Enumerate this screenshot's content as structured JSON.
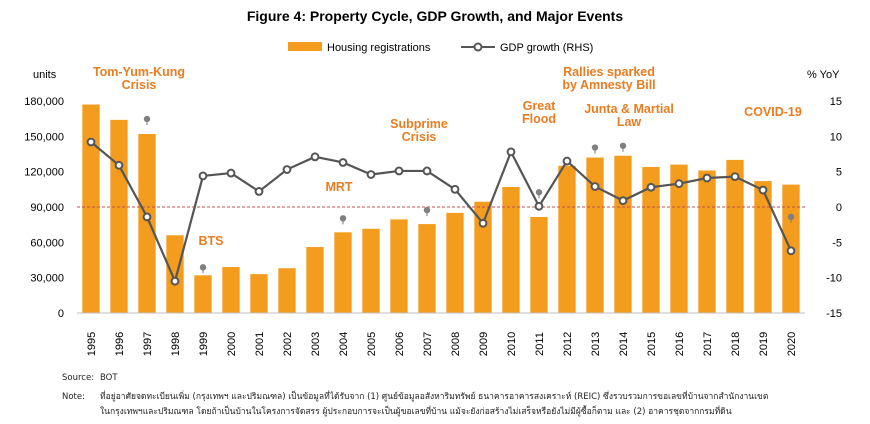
{
  "chart_data": {
    "type": "bar",
    "title": "Figure 4: Property Cycle, GDP Growth, and Major Events",
    "categories": [
      "1995",
      "1996",
      "1997",
      "1998",
      "1999",
      "2000",
      "2001",
      "2002",
      "2003",
      "2004",
      "2005",
      "2006",
      "2007",
      "2008",
      "2009",
      "2010",
      "2011",
      "2012",
      "2013",
      "2014",
      "2015",
      "2016",
      "2017",
      "2018",
      "2019",
      "2020"
    ],
    "series": [
      {
        "name": "Housing registrations",
        "type": "bar",
        "axis": "left",
        "values": [
          177000,
          164000,
          152000,
          66000,
          32000,
          39000,
          33000,
          38000,
          56000,
          68500,
          71500,
          79500,
          75500,
          85000,
          94500,
          107000,
          81500,
          125000,
          132000,
          133500,
          124000,
          126000,
          121000,
          130000,
          112000,
          109000
        ]
      },
      {
        "name": "GDP growth (RHS)",
        "type": "line",
        "axis": "right",
        "values": [
          9.2,
          5.9,
          -1.4,
          -10.5,
          4.4,
          4.8,
          2.2,
          5.3,
          7.1,
          6.3,
          4.6,
          5.1,
          5.1,
          2.5,
          -2.3,
          7.8,
          0.1,
          6.5,
          2.9,
          0.9,
          2.8,
          3.3,
          4.1,
          4.3,
          2.4,
          -6.2
        ]
      }
    ],
    "y_left": {
      "label": "units",
      "ylim": [
        0,
        180000
      ],
      "ticks": [
        "0",
        "30,000",
        "60,000",
        "90,000",
        "120,000",
        "150,000",
        "180,000"
      ]
    },
    "y_right": {
      "label": "% YoY",
      "ylim": [
        -15,
        15
      ],
      "ticks": [
        "-15",
        "-10",
        "-5",
        "0",
        "5",
        "10",
        "15"
      ]
    },
    "legend_position": "top-center",
    "colors": {
      "bar": "#F39C1E",
      "line": "#555555",
      "annotation": "#E67E22",
      "zero_line": "#C0504D"
    },
    "annotations": [
      {
        "lines": [
          "Tom-Yum-Kung",
          "Crisis"
        ],
        "year": "1997",
        "value": 152000
      },
      {
        "lines": [
          "BTS"
        ],
        "year": "1999",
        "value": 32000
      },
      {
        "lines": [
          "MRT"
        ],
        "year": "2004",
        "value": 68500
      },
      {
        "lines": [
          "Subprime",
          "Crisis"
        ],
        "year": "2007",
        "value": 75500
      },
      {
        "lines": [
          "Great",
          "Flood"
        ],
        "year": "2011",
        "value": 81500
      },
      {
        "lines": [
          "Rallies sparked",
          "by Amnesty Bill"
        ],
        "year": "2013",
        "value": 132000
      },
      {
        "lines": [
          "Junta & Martial",
          "Law"
        ],
        "year": "2014",
        "value": 133500
      },
      {
        "lines": [
          "COVID-19"
        ],
        "year": "2020",
        "value": 109000
      }
    ]
  },
  "footer": {
    "source_label": "Source:",
    "source_text": "BOT",
    "note_label": "Note:",
    "note_line1": "ที่อยู่อาศัยจดทะเบียนเพิ่ม (กรุงเทพฯ และปริมณฑล) เป็นข้อมูลที่ได้รับจาก (1) ศูนย์ข้อมูลอสังหาริมทรัพย์ ธนาคารอาคารสงเคราะห์ (REIC) ซึ่งรวบรวมการขอเลขที่บ้านจากสำนักงานเขต",
    "note_line2": "ในกรุงเทพฯและปริมณฑล โดยถ้าเป็นบ้านในโครงการจัดสรร ผู้ประกอบการจะเป็นผู้ขอเลขที่บ้าน แม้จะยังก่อสร้างไม่เสร็จหรือยังไม่มีผู้ซื้อก็ตาม และ (2) อาคารชุดจากกรมที่ดิน"
  }
}
